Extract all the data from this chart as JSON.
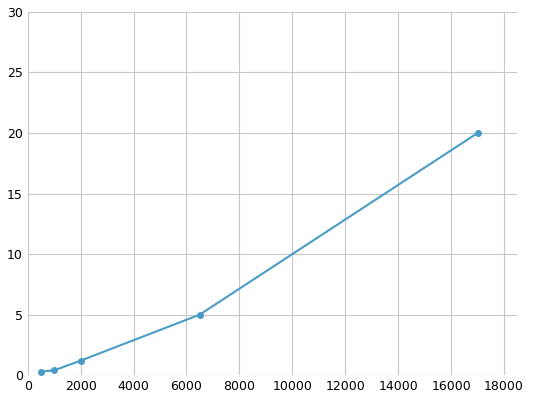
{
  "x": [
    500,
    1000,
    2000,
    6500,
    17000
  ],
  "y": [
    0.3,
    0.4,
    1.2,
    5.0,
    20.0
  ],
  "line_color": "#4a9cc7",
  "marker_color": "#4a9cc7",
  "marker_size": 4,
  "xlim": [
    0,
    18500
  ],
  "ylim": [
    0,
    30
  ],
  "xticks": [
    0,
    2000,
    4000,
    6000,
    8000,
    10000,
    12000,
    14000,
    16000,
    18000
  ],
  "yticks": [
    0,
    5,
    10,
    15,
    20,
    25,
    30
  ],
  "grid_color": "#c8c8c8",
  "background_color": "#ffffff",
  "tick_fontsize": 9
}
